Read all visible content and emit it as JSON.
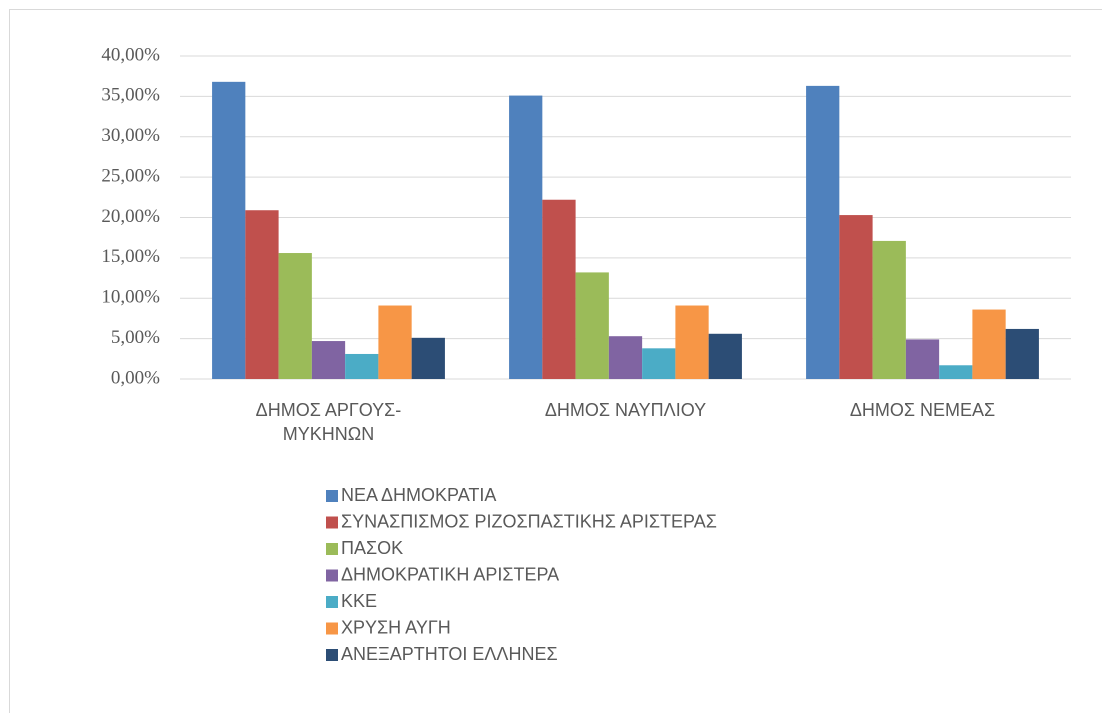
{
  "chart_data": {
    "type": "bar",
    "categories": [
      "ΔΗΜΟΣ ΑΡΓΟΥΣ-ΜΥΚΗΝΩΝ",
      "ΔΗΜΟΣ ΝΑΥΠΛΙΟΥ",
      "ΔΗΜΟΣ ΝΕΜΕΑΣ"
    ],
    "series": [
      {
        "name": "ΝΕΑ ΔΗΜΟΚΡΑΤΙΑ",
        "color": "#4f81bd",
        "values": [
          36.8,
          35.1,
          36.3
        ]
      },
      {
        "name": "ΣΥΝΑΣΠΙΣΜΟΣ ΡΙΖΟΣΠΑΣΤΙΚΗΣ ΑΡΙΣΤΕΡΑΣ",
        "color": "#c0504d",
        "values": [
          20.9,
          22.2,
          20.3
        ]
      },
      {
        "name": "ΠΑΣΟΚ",
        "color": "#9bbb59",
        "values": [
          15.6,
          13.2,
          17.1
        ]
      },
      {
        "name": "ΔΗΜΟΚΡΑΤΙΚΗ ΑΡΙΣΤΕΡΑ",
        "color": "#8064a2",
        "values": [
          4.7,
          5.3,
          4.9
        ]
      },
      {
        "name": "ΚΚΕ",
        "color": "#4bacc6",
        "values": [
          3.1,
          3.8,
          1.7
        ]
      },
      {
        "name": "ΧΡΥΣΗ ΑΥΓΗ",
        "color": "#f79646",
        "values": [
          9.1,
          9.1,
          8.6
        ]
      },
      {
        "name": "ΑΝΕΞΑΡΤΗΤΟΙ ΕΛΛΗΝΕΣ",
        "color": "#2c4d75",
        "values": [
          5.1,
          5.6,
          6.2
        ]
      }
    ],
    "ylim": [
      0,
      40
    ],
    "yticks": [
      {
        "value": 0,
        "label": "0,00%"
      },
      {
        "value": 5,
        "label": "5,00%"
      },
      {
        "value": 10,
        "label": "10,00%"
      },
      {
        "value": 15,
        "label": "15,00%"
      },
      {
        "value": 20,
        "label": "20,00%"
      },
      {
        "value": 25,
        "label": "25,00%"
      },
      {
        "value": 30,
        "label": "30,00%"
      },
      {
        "value": 35,
        "label": "35,00%"
      },
      {
        "value": 40,
        "label": "40,00%"
      }
    ],
    "grid": true,
    "legend": "bottom"
  }
}
